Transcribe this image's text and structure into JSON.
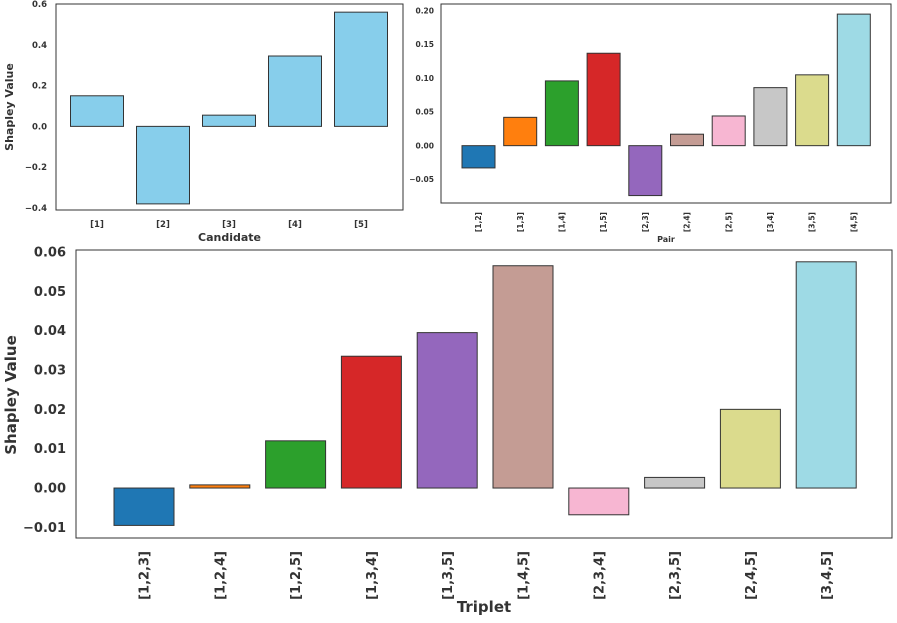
{
  "chart_data": [
    {
      "type": "bar",
      "title": "",
      "xlabel": "Candidate",
      "ylabel": "Shapley Value",
      "categories": [
        "[1]",
        "[2]",
        "[3]",
        "[4]",
        "[5]"
      ],
      "values": [
        0.15,
        -0.38,
        0.055,
        0.345,
        0.56
      ],
      "colors": [
        "#87ceeb",
        "#87ceeb",
        "#87ceeb",
        "#87ceeb",
        "#87ceeb"
      ],
      "ylim": [
        -0.41,
        0.6
      ],
      "yticks": [
        -0.4,
        -0.2,
        0.0,
        0.2,
        0.4,
        0.6
      ],
      "ytick_labels": [
        "−0.4",
        "−0.2",
        "0.0",
        "0.2",
        "0.4",
        "0.6"
      ],
      "grid": false
    },
    {
      "type": "bar",
      "title": "",
      "xlabel": "Pair",
      "ylabel": "",
      "categories": [
        "[1,2]",
        "[1,3]",
        "[1,4]",
        "[1,5]",
        "[2,3]",
        "[2,4]",
        "[2,5]",
        "[3,4]",
        "[3,5]",
        "[4,5]"
      ],
      "values": [
        -0.033,
        0.042,
        0.096,
        0.137,
        -0.074,
        0.017,
        0.044,
        0.086,
        0.105,
        0.195
      ],
      "colors": [
        "#1f77b4",
        "#ff7f0e",
        "#2ca02c",
        "#d62728",
        "#9467bd",
        "#c49c94",
        "#f7b6d2",
        "#c7c7c7",
        "#dbdb8d",
        "#9edae5"
      ],
      "ylim": [
        -0.085,
        0.21
      ],
      "yticks": [
        -0.05,
        0.0,
        0.05,
        0.1,
        0.15,
        0.2
      ],
      "ytick_labels": [
        "−0.05",
        "0.00",
        "0.05",
        "0.10",
        "0.15",
        "0.20"
      ],
      "grid": false
    },
    {
      "type": "bar",
      "title": "",
      "xlabel": "Triplet",
      "ylabel": "Shapley Value",
      "categories": [
        "[1,2,3]",
        "[1,2,4]",
        "[1,2,5]",
        "[1,3,4]",
        "[1,3,5]",
        "[1,4,5]",
        "[2,3,4]",
        "[2,3,5]",
        "[2,4,5]",
        "[3,4,5]"
      ],
      "values": [
        -0.0095,
        0.0008,
        0.012,
        0.0335,
        0.0395,
        0.0565,
        -0.0068,
        0.0027,
        0.02,
        0.0575
      ],
      "colors": [
        "#1f77b4",
        "#ff7f0e",
        "#2ca02c",
        "#d62728",
        "#9467bd",
        "#c49c94",
        "#f7b6d2",
        "#c7c7c7",
        "#dbdb8d",
        "#9edae5"
      ],
      "ylim": [
        -0.0127,
        0.0605
      ],
      "yticks": [
        -0.01,
        0.0,
        0.01,
        0.02,
        0.03,
        0.04,
        0.05,
        0.06
      ],
      "ytick_labels": [
        "−0.01",
        "0.00",
        "0.01",
        "0.02",
        "0.03",
        "0.04",
        "0.05",
        "0.06"
      ],
      "grid": false
    }
  ]
}
